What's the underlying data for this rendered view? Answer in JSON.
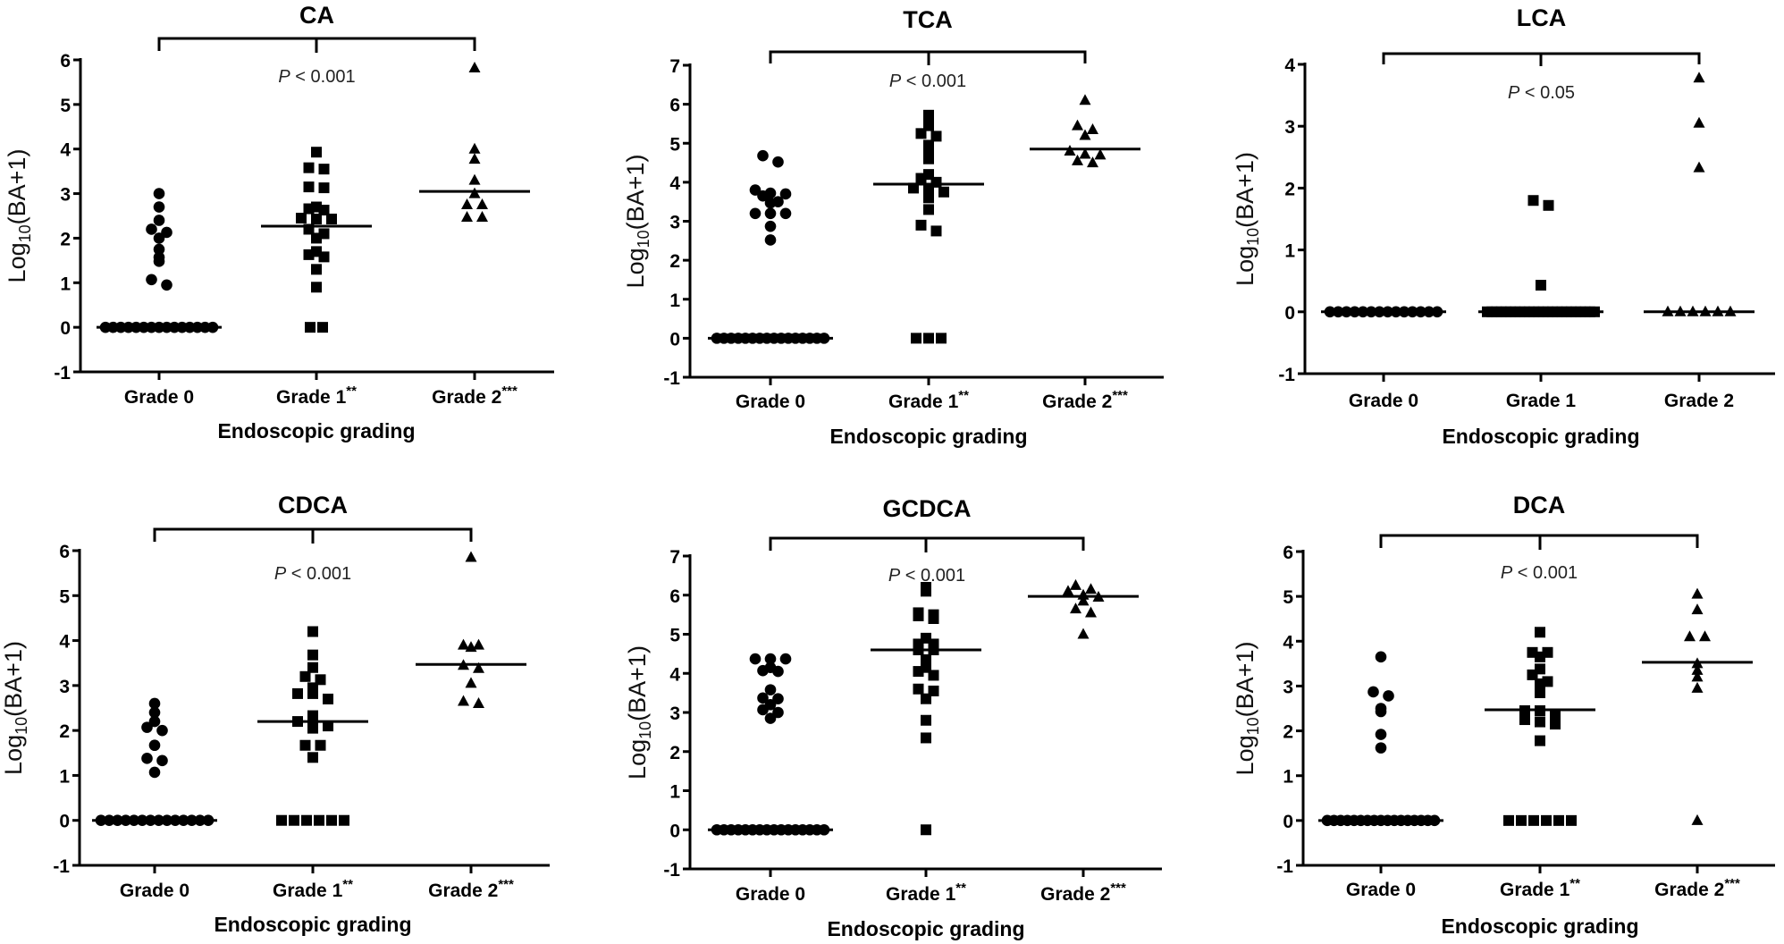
{
  "chart_data": [
    {
      "type": "scatter",
      "title": "CA",
      "xlabel": "Endoscopic grading",
      "ylabel": {
        "base": "Log",
        "sub": "10",
        "rest": "(BA+1)"
      },
      "ylim": [
        -1,
        6
      ],
      "yticks": [
        "-1",
        "0",
        "1",
        "2",
        "3",
        "4",
        "5",
        "6"
      ],
      "p_value": {
        "p": "P",
        "text": " < 0.001"
      },
      "groups": [
        {
          "label": "Grade 0",
          "stars": "",
          "marker": "circle",
          "median": 0,
          "values": [
            3.0,
            2.7,
            2.4,
            2.2,
            2.13,
            2.0,
            1.75,
            1.57,
            1.48,
            1.07,
            0.95,
            0,
            0,
            0,
            0,
            0,
            0,
            0,
            0,
            0,
            0,
            0,
            0,
            0,
            0,
            0
          ]
        },
        {
          "label": "Grade 1",
          "stars": "**",
          "marker": "square",
          "median": 2.27,
          "values": [
            3.93,
            3.58,
            3.55,
            3.15,
            3.13,
            2.7,
            2.66,
            2.63,
            2.45,
            2.43,
            2.43,
            2.2,
            2.1,
            2.0,
            1.7,
            1.63,
            1.58,
            1.3,
            0.9,
            0,
            0
          ]
        },
        {
          "label": "Grade 2",
          "stars": "***",
          "marker": "triangle",
          "median": 3.05,
          "values": [
            5.82,
            4.0,
            3.77,
            3.3,
            3.0,
            2.75,
            2.75,
            2.47,
            2.47
          ]
        }
      ]
    },
    {
      "type": "scatter",
      "title": "TCA",
      "xlabel": "Endoscopic grading",
      "ylabel": {
        "base": "Log",
        "sub": "10",
        "rest": "(BA+1)"
      },
      "ylim": [
        -1,
        7
      ],
      "yticks": [
        "-1",
        "0",
        "1",
        "2",
        "3",
        "4",
        "5",
        "6",
        "7"
      ],
      "p_value": {
        "p": "P",
        "text": " < 0.001"
      },
      "groups": [
        {
          "label": "Grade 0",
          "stars": "",
          "marker": "circle",
          "median": 0,
          "values": [
            4.68,
            4.52,
            3.8,
            3.72,
            3.7,
            3.65,
            3.5,
            3.47,
            3.2,
            3.2,
            3.2,
            2.87,
            2.52,
            0,
            0,
            0,
            0,
            0,
            0,
            0,
            0,
            0,
            0,
            0,
            0,
            0,
            0,
            0,
            0
          ]
        },
        {
          "label": "Grade 1",
          "stars": "**",
          "marker": "square",
          "median": 3.95,
          "values": [
            5.72,
            5.55,
            5.45,
            5.25,
            5.18,
            4.95,
            4.7,
            4.6,
            4.2,
            4.1,
            4.0,
            3.85,
            3.8,
            3.75,
            3.6,
            3.3,
            2.9,
            2.75,
            0,
            0,
            0
          ]
        },
        {
          "label": "Grade 2",
          "stars": "***",
          "marker": "triangle",
          "median": 4.85,
          "values": [
            6.1,
            5.45,
            5.35,
            5.2,
            4.8,
            4.72,
            4.7,
            4.55,
            4.5
          ]
        }
      ]
    },
    {
      "type": "scatter",
      "title": "LCA",
      "xlabel": "Endoscopic grading",
      "ylabel": {
        "base": "Log",
        "sub": "10",
        "rest": "(BA+1)"
      },
      "ylim": [
        -1,
        4
      ],
      "yticks": [
        "-1",
        "0",
        "1",
        "2",
        "3",
        "4"
      ],
      "p_value": {
        "p": "P",
        "text": " < 0.05"
      },
      "groups": [
        {
          "label": "Grade 0",
          "stars": "",
          "marker": "circle",
          "median": 0,
          "values": [
            0,
            0,
            0,
            0,
            0,
            0,
            0,
            0,
            0,
            0,
            0,
            0,
            0,
            0
          ]
        },
        {
          "label": "Grade 1",
          "stars": "",
          "marker": "square",
          "median": 0,
          "values": [
            1.8,
            1.72,
            0.43,
            0,
            0,
            0,
            0,
            0,
            0,
            0,
            0,
            0,
            0,
            0,
            0,
            0,
            0,
            0,
            0,
            0,
            0,
            0,
            0,
            0,
            0,
            0,
            0
          ]
        },
        {
          "label": "Grade 2",
          "stars": "",
          "marker": "triangle",
          "median": 0,
          "values": [
            3.78,
            3.05,
            2.33,
            0,
            0,
            0,
            0,
            0,
            0
          ]
        }
      ]
    },
    {
      "type": "scatter",
      "title": "CDCA",
      "xlabel": "Endoscopic grading",
      "ylabel": {
        "base": "Log",
        "sub": "10",
        "rest": "(BA+1)"
      },
      "ylim": [
        -1,
        6
      ],
      "yticks": [
        "-1",
        "0",
        "1",
        "2",
        "3",
        "4",
        "5",
        "6"
      ],
      "p_value": {
        "p": "P",
        "text": " < 0.001"
      },
      "groups": [
        {
          "label": "Grade 0",
          "stars": "",
          "marker": "circle",
          "median": 0,
          "values": [
            2.6,
            2.4,
            2.2,
            2.07,
            2.0,
            1.67,
            1.38,
            1.33,
            1.07,
            0,
            0,
            0,
            0,
            0,
            0,
            0,
            0,
            0,
            0,
            0,
            0,
            0,
            0
          ]
        },
        {
          "label": "Grade 1",
          "stars": "**",
          "marker": "square",
          "median": 2.2,
          "values": [
            4.2,
            3.68,
            3.4,
            3.2,
            3.13,
            2.95,
            2.82,
            2.82,
            2.7,
            2.33,
            2.2,
            2.2,
            2.1,
            2.05,
            1.67,
            1.67,
            1.4,
            0,
            0,
            0,
            0,
            0,
            0
          ]
        },
        {
          "label": "Grade 2",
          "stars": "***",
          "marker": "triangle",
          "median": 3.47,
          "values": [
            5.85,
            3.9,
            3.9,
            3.85,
            3.45,
            3.38,
            3.05,
            2.65,
            2.6
          ]
        }
      ]
    },
    {
      "type": "scatter",
      "title": "GCDCA",
      "xlabel": "Endoscopic grading",
      "ylabel": {
        "base": "Log",
        "sub": "10",
        "rest": "(BA+1)"
      },
      "ylim": [
        -1,
        7
      ],
      "yticks": [
        "-1",
        "0",
        "1",
        "2",
        "3",
        "4",
        "5",
        "6",
        "7"
      ],
      "p_value": {
        "p": "P",
        "text": " < 0.001"
      },
      "groups": [
        {
          "label": "Grade 0",
          "stars": "",
          "marker": "circle",
          "median": 0,
          "values": [
            4.37,
            4.37,
            4.37,
            4.15,
            4.07,
            4.05,
            3.58,
            3.37,
            3.35,
            3.2,
            3.07,
            3.0,
            2.85,
            0,
            0,
            0,
            0,
            0,
            0,
            0,
            0,
            0,
            0,
            0,
            0,
            0,
            0,
            0,
            0
          ]
        },
        {
          "label": "Grade 1",
          "stars": "**",
          "marker": "square",
          "median": 4.6,
          "values": [
            6.2,
            6.1,
            5.55,
            5.5,
            5.47,
            5.4,
            4.9,
            4.75,
            4.75,
            4.6,
            4.6,
            4.35,
            4.15,
            4.05,
            3.95,
            3.6,
            3.55,
            3.35,
            2.8,
            2.35,
            0
          ]
        },
        {
          "label": "Grade 2",
          "stars": "***",
          "marker": "triangle",
          "median": 5.97,
          "values": [
            6.25,
            6.15,
            6.1,
            6.0,
            5.95,
            5.85,
            5.65,
            5.55,
            5.0
          ]
        }
      ]
    },
    {
      "type": "scatter",
      "title": "DCA",
      "xlabel": "Endoscopic grading",
      "ylabel": {
        "base": "Log",
        "sub": "10",
        "rest": "(BA+1)"
      },
      "ylim": [
        -1,
        6
      ],
      "yticks": [
        "-1",
        "0",
        "1",
        "2",
        "3",
        "4",
        "5",
        "6"
      ],
      "p_value": {
        "p": "P",
        "text": " < 0.001"
      },
      "groups": [
        {
          "label": "Grade 0",
          "stars": "",
          "marker": "circle",
          "median": 0,
          "values": [
            3.65,
            2.87,
            2.78,
            2.5,
            2.43,
            1.92,
            1.62,
            0,
            0,
            0,
            0,
            0,
            0,
            0,
            0,
            0,
            0,
            0,
            0,
            0,
            0,
            0,
            0,
            0
          ]
        },
        {
          "label": "Grade 1",
          "stars": "**",
          "marker": "square",
          "median": 2.47,
          "values": [
            4.2,
            3.75,
            3.75,
            3.65,
            3.38,
            3.25,
            3.1,
            3.05,
            2.85,
            2.45,
            2.45,
            2.35,
            2.25,
            2.2,
            2.15,
            1.78,
            0,
            0,
            0,
            0,
            0,
            0
          ]
        },
        {
          "label": "Grade 2",
          "stars": "***",
          "marker": "triangle",
          "median": 3.53,
          "values": [
            5.05,
            4.7,
            4.1,
            4.1,
            3.5,
            3.35,
            3.2,
            2.95,
            0
          ]
        }
      ]
    }
  ]
}
